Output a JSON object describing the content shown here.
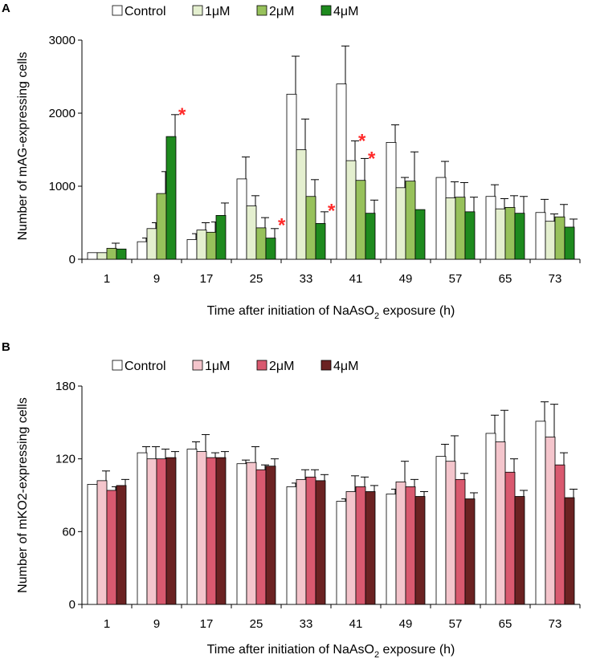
{
  "chart_data": [
    {
      "type": "bar",
      "panel": "A",
      "title": "",
      "xlabel": "Time after initiation of NaAsO",
      "xlabel_subscript": "2",
      "xlabel_suffix": " exposure (h)",
      "ylabel": "Number of mAG-expressing cells",
      "ylim": [
        0,
        3000
      ],
      "yticks": [
        "0",
        "1000",
        "2000",
        "3000"
      ],
      "ytick_values": [
        0,
        1000,
        2000,
        3000
      ],
      "categories": [
        "1",
        "9",
        "17",
        "25",
        "33",
        "41",
        "49",
        "57",
        "65",
        "73"
      ],
      "legend_position": "top",
      "series": [
        {
          "name": "Control",
          "color": "#ffffff",
          "values": [
            90,
            240,
            270,
            1100,
            2260,
            2400,
            1600,
            1120,
            860,
            640
          ],
          "errors": [
            0,
            50,
            80,
            300,
            520,
            520,
            240,
            220,
            160,
            180
          ]
        },
        {
          "name": "1μM",
          "color": "#e4efcf",
          "values": [
            90,
            420,
            400,
            730,
            1500,
            1350,
            980,
            840,
            690,
            520
          ],
          "errors": [
            0,
            80,
            100,
            140,
            420,
            270,
            140,
            220,
            140,
            100
          ]
        },
        {
          "name": "2μM",
          "color": "#97c15b",
          "values": [
            150,
            900,
            370,
            430,
            860,
            1080,
            1070,
            850,
            710,
            580
          ],
          "errors": [
            70,
            300,
            140,
            140,
            230,
            300,
            400,
            200,
            160,
            170
          ]
        },
        {
          "name": "4μM",
          "color": "#1e8a1e",
          "values": [
            140,
            1680,
            600,
            290,
            490,
            630,
            680,
            650,
            630,
            440
          ],
          "errors": [
            0,
            300,
            170,
            130,
            160,
            180,
            0,
            200,
            230,
            110
          ]
        }
      ],
      "significance": [
        {
          "category": "9",
          "series": "4μM",
          "marker": "*"
        },
        {
          "category": "25",
          "series": "4μM",
          "marker": "*"
        },
        {
          "category": "33",
          "series": "4μM",
          "marker": "*"
        },
        {
          "category": "41",
          "series": "1μM",
          "marker": "*"
        },
        {
          "category": "41",
          "series": "2μM",
          "marker": "*"
        }
      ]
    },
    {
      "type": "bar",
      "panel": "B",
      "title": "",
      "xlabel": "Time after initiation of NaAsO",
      "xlabel_subscript": "2",
      "xlabel_suffix": " exposure (h)",
      "ylabel": "Number of mKO2-expressing cells",
      "ylim": [
        0,
        180
      ],
      "yticks": [
        "0",
        "60",
        "120",
        "180"
      ],
      "ytick_values": [
        0,
        60,
        120,
        180
      ],
      "categories": [
        "1",
        "9",
        "17",
        "25",
        "33",
        "41",
        "49",
        "57",
        "65",
        "73"
      ],
      "legend_position": "top",
      "series": [
        {
          "name": "Control",
          "color": "#ffffff",
          "values": [
            99,
            125,
            128,
            116,
            97,
            85,
            91,
            122,
            141,
            151
          ],
          "errors": [
            0,
            5,
            6,
            3,
            3,
            2,
            4,
            10,
            15,
            16
          ]
        },
        {
          "name": "1μM",
          "color": "#f4c5cc",
          "values": [
            102,
            120,
            126,
            117,
            103,
            93,
            101,
            118,
            134,
            138
          ],
          "errors": [
            8,
            10,
            14,
            13,
            8,
            13,
            17,
            21,
            26,
            27
          ]
        },
        {
          "name": "2μM",
          "color": "#d9596f",
          "values": [
            94,
            120,
            121,
            111,
            105,
            97,
            97,
            103,
            109,
            115
          ],
          "errors": [
            3,
            8,
            4,
            4,
            6,
            8,
            6,
            5,
            11,
            10
          ]
        },
        {
          "name": "4μM",
          "color": "#6b2222",
          "values": [
            98,
            121,
            121,
            114,
            102,
            93,
            89,
            87,
            89,
            88
          ],
          "errors": [
            5,
            5,
            5,
            6,
            5,
            5,
            4,
            5,
            5,
            7
          ]
        }
      ],
      "significance": []
    }
  ]
}
